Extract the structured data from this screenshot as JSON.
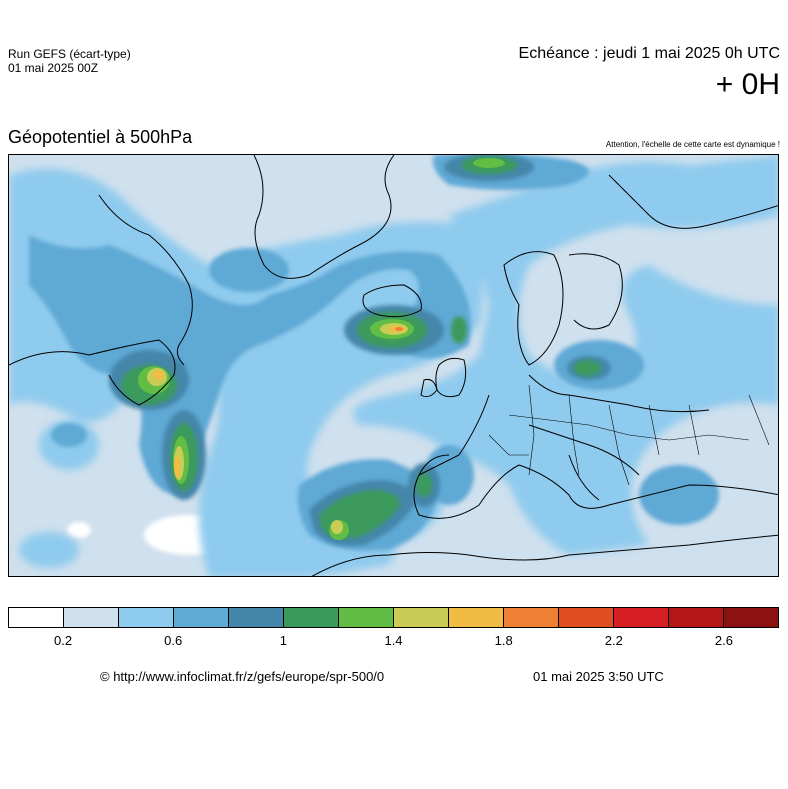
{
  "header": {
    "run_title": "Run GEFS (écart-type)",
    "run_date": "01 mai 2025 00Z",
    "echeance": "Echéance : jeudi 1 mai 2025 0h UTC",
    "lead_time": "+ 0H"
  },
  "map": {
    "title": "Géopotentiel à 500hPa",
    "warning": "Attention, l'échelle de cette carte est dynamique !",
    "region": "Europe / North Atlantic"
  },
  "legend": {
    "colors": [
      "#ffffff",
      "#cfe0ee",
      "#8fcbee",
      "#5fa9d5",
      "#4486aa",
      "#3a9a5c",
      "#62bd44",
      "#c9cd55",
      "#f0bc43",
      "#ef7f33",
      "#df4d23",
      "#d51f22",
      "#b51616",
      "#8c1212"
    ],
    "ticks": [
      "0.2",
      "0.6",
      "1",
      "1.4",
      "1.8",
      "2.2",
      "2.6"
    ]
  },
  "footer": {
    "copyright": "© http://www.infoclimat.fr/z/gefs/europe/spr-500/0",
    "generated": "01 mai 2025  3:50 UTC"
  }
}
